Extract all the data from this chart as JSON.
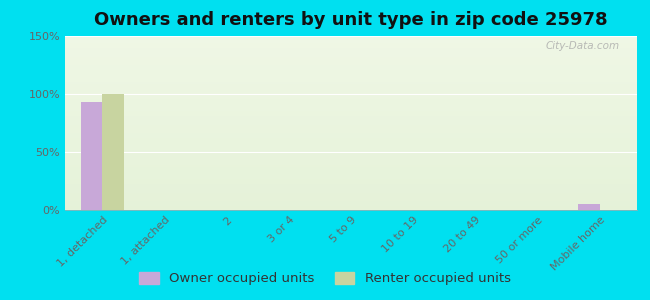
{
  "title": "Owners and renters by unit type in zip code 25978",
  "categories": [
    "1, detached",
    "1, attached",
    "2",
    "3 or 4",
    "5 to 9",
    "10 to 19",
    "20 to 49",
    "50 or more",
    "Mobile home"
  ],
  "owner_values": [
    93,
    0,
    0,
    0,
    0,
    0,
    0,
    0,
    5
  ],
  "renter_values": [
    100,
    0,
    0,
    0,
    0,
    0,
    0,
    0,
    0
  ],
  "owner_color": "#c8a8d8",
  "renter_color": "#c8d4a0",
  "background_outer": "#00e0f0",
  "background_inner": "#e8f2d8",
  "ylim": [
    0,
    150
  ],
  "yticks": [
    0,
    50,
    100,
    150
  ],
  "ytick_labels": [
    "0%",
    "50%",
    "100%",
    "150%"
  ],
  "bar_width": 0.35,
  "watermark": "City-Data.com",
  "legend_owner": "Owner occupied units",
  "legend_renter": "Renter occupied units",
  "title_fontsize": 13,
  "tick_fontsize": 8,
  "legend_fontsize": 9.5
}
